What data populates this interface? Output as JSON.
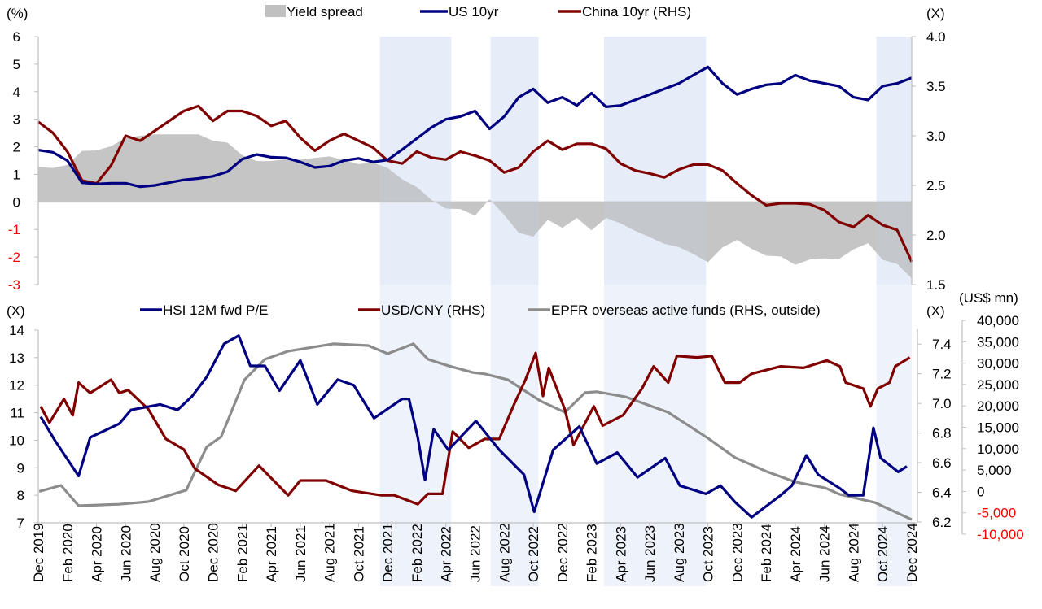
{
  "colors": {
    "us10yr": "#000080",
    "china10yr": "#800000",
    "spread": "#c0c0c0",
    "hsi": "#000080",
    "usdcny": "#800000",
    "epfr": "#8c8c8c",
    "shading": "#eef2fa",
    "negative_label": "#ff0000"
  },
  "x_axis": {
    "range": [
      "2019-12",
      "2024-12"
    ],
    "tick_labels": [
      "Dec 2019",
      "Feb 2020",
      "Apr 2020",
      "Jun 2020",
      "Aug 2020",
      "Oct 2020",
      "Dec 2020",
      "Feb 2021",
      "Apr 2021",
      "Jun 2021",
      "Aug 2021",
      "Oct 2021",
      "Dec 2021",
      "Feb 2022",
      "Apr 2022",
      "Jun 2022",
      "Aug 2022",
      "Oct 2022",
      "Dec 2022",
      "Feb 2023",
      "Apr 2023",
      "Jun 2023",
      "Aug 2023",
      "Oct 2023",
      "Dec 2023",
      "Feb 2024",
      "Apr 2024",
      "Jun 2024",
      "Aug 2024",
      "Oct 2024",
      "Dec 2024"
    ]
  },
  "shaded_periods": [
    [
      "2021-11-15",
      "2022-04-12"
    ],
    [
      "2022-07-03",
      "2022-10-12"
    ],
    [
      "2023-02-27",
      "2023-09-27"
    ],
    [
      "2024-09-18",
      "2024-12-01"
    ]
  ],
  "chart_data": [
    {
      "type": "line",
      "panel": "top",
      "legend": [
        "Yield spread",
        "US 10yr",
        "China 10yr (RHS)"
      ],
      "legend_placement": "top",
      "grid": false,
      "left_axis": {
        "unit_label": "(%)",
        "range": [
          -3,
          6
        ],
        "ticks": [
          "6",
          "5",
          "4",
          "3",
          "2",
          "1",
          "0",
          "-1",
          "-2",
          "-3"
        ]
      },
      "right_axis": {
        "unit_label": "(X)",
        "range": [
          1.5,
          4.0
        ],
        "ticks": [
          "4.0",
          "3.5",
          "3.0",
          "2.5",
          "2.0",
          "1.5"
        ]
      },
      "x": [
        "2019-12",
        "2020-01",
        "2020-02",
        "2020-03",
        "2020-04",
        "2020-05",
        "2020-06",
        "2020-07",
        "2020-08",
        "2020-09",
        "2020-10",
        "2020-11",
        "2020-12",
        "2021-01",
        "2021-02",
        "2021-03",
        "2021-04",
        "2021-05",
        "2021-06",
        "2021-07",
        "2021-08",
        "2021-09",
        "2021-10",
        "2021-11",
        "2021-12",
        "2022-01",
        "2022-02",
        "2022-03",
        "2022-04",
        "2022-05",
        "2022-06",
        "2022-07",
        "2022-08",
        "2022-09",
        "2022-10",
        "2022-11",
        "2022-12",
        "2023-01",
        "2023-02",
        "2023-03",
        "2023-04",
        "2023-05",
        "2023-06",
        "2023-07",
        "2023-08",
        "2023-09",
        "2023-10",
        "2023-11",
        "2023-12",
        "2024-01",
        "2024-02",
        "2024-03",
        "2024-04",
        "2024-05",
        "2024-06",
        "2024-07",
        "2024-08",
        "2024-09",
        "2024-10",
        "2024-11",
        "2024-12"
      ],
      "series": [
        {
          "name": "Yield spread",
          "type": "area",
          "axis": "left",
          "values": [
            1.26,
            1.23,
            1.34,
            1.85,
            1.87,
            2.02,
            2.32,
            2.4,
            2.45,
            2.45,
            2.45,
            2.45,
            2.22,
            2.15,
            1.7,
            1.48,
            1.48,
            1.55,
            1.53,
            1.6,
            1.65,
            1.52,
            1.37,
            1.43,
            1.23,
            0.82,
            0.54,
            0.08,
            -0.24,
            -0.26,
            -0.5,
            0.1,
            -0.47,
            -1.12,
            -1.26,
            -0.65,
            -0.94,
            -0.58,
            -1.03,
            -0.58,
            -0.78,
            -1.05,
            -1.28,
            -1.52,
            -1.64,
            -1.89,
            -2.19,
            -1.65,
            -1.38,
            -1.7,
            -1.95,
            -1.98,
            -2.28,
            -2.09,
            -2.05,
            -2.07,
            -1.72,
            -1.5,
            -2.1,
            -2.25,
            -2.77
          ]
        },
        {
          "name": "US 10yr",
          "type": "line",
          "axis": "left",
          "values": [
            1.88,
            1.8,
            1.5,
            0.7,
            0.65,
            0.68,
            0.68,
            0.55,
            0.6,
            0.7,
            0.8,
            0.85,
            0.93,
            1.1,
            1.55,
            1.72,
            1.62,
            1.6,
            1.45,
            1.25,
            1.3,
            1.5,
            1.58,
            1.45,
            1.52,
            1.9,
            2.3,
            2.7,
            3.0,
            3.1,
            3.3,
            2.65,
            3.1,
            3.8,
            4.1,
            3.6,
            3.8,
            3.5,
            3.95,
            3.45,
            3.5,
            3.7,
            3.9,
            4.1,
            4.3,
            4.6,
            4.9,
            4.3,
            3.9,
            4.1,
            4.25,
            4.3,
            4.6,
            4.4,
            4.3,
            4.2,
            3.8,
            3.7,
            4.2,
            4.3,
            4.5
          ]
        },
        {
          "name": "China 10yr (RHS)",
          "type": "line",
          "axis": "right",
          "values": [
            3.14,
            3.03,
            2.84,
            2.55,
            2.52,
            2.7,
            3.0,
            2.95,
            3.05,
            3.15,
            3.25,
            3.3,
            3.15,
            3.25,
            3.25,
            3.2,
            3.1,
            3.15,
            2.98,
            2.85,
            2.95,
            3.02,
            2.95,
            2.88,
            2.75,
            2.72,
            2.84,
            2.78,
            2.76,
            2.84,
            2.8,
            2.75,
            2.63,
            2.68,
            2.84,
            2.95,
            2.86,
            2.92,
            2.92,
            2.87,
            2.72,
            2.65,
            2.62,
            2.58,
            2.66,
            2.71,
            2.71,
            2.65,
            2.52,
            2.4,
            2.3,
            2.32,
            2.32,
            2.31,
            2.25,
            2.13,
            2.08,
            2.2,
            2.1,
            2.05,
            1.73
          ]
        }
      ]
    },
    {
      "type": "line",
      "panel": "bottom",
      "legend": [
        "HSI 12M fwd P/E",
        "USD/CNY (RHS)",
        "EPFR overseas active funds (RHS, outside)"
      ],
      "legend_placement": "top",
      "grid": false,
      "left_axis": {
        "unit_label": "(X)",
        "range": [
          7,
          14
        ],
        "ticks": [
          "14",
          "13",
          "12",
          "11",
          "10",
          "9",
          "8",
          "7"
        ]
      },
      "right_axis": {
        "unit_label": "(X)",
        "range": [
          6.2,
          7.5
        ],
        "ticks": [
          "7.4",
          "7.2",
          "7.0",
          "6.8",
          "6.6",
          "6.4",
          "6.2"
        ]
      },
      "outside_axis": {
        "unit_label": "(US$ mn)",
        "range": [
          -10000,
          40000
        ],
        "ticks": [
          "40,000",
          "35,000",
          "30,000",
          "25,000",
          "20,000",
          "15,000",
          "10,000",
          "5,000",
          "0",
          "-5,000",
          "-10,000"
        ]
      },
      "series": [
        {
          "name": "HSI 12M fwd P/E",
          "axis": "left",
          "points": [
            [
              "2019-12-06",
              10.85
            ],
            [
              "2020-01-06",
              9.97
            ],
            [
              "2020-02-24",
              8.7
            ],
            [
              "2020-03-18",
              10.1
            ],
            [
              "2020-05-18",
              10.6
            ],
            [
              "2020-06-12",
              11.1
            ],
            [
              "2020-08-12",
              11.3
            ],
            [
              "2020-09-18",
              11.1
            ],
            [
              "2020-10-18",
              11.6
            ],
            [
              "2020-11-18",
              12.3
            ],
            [
              "2020-12-24",
              13.5
            ],
            [
              "2021-01-24",
              13.8
            ],
            [
              "2021-02-18",
              12.7
            ],
            [
              "2021-03-18",
              12.7
            ],
            [
              "2021-04-18",
              11.8
            ],
            [
              "2021-06-01",
              12.9
            ],
            [
              "2021-07-06",
              11.3
            ],
            [
              "2021-08-18",
              12.2
            ],
            [
              "2021-09-21",
              12.0
            ],
            [
              "2021-11-03",
              10.8
            ],
            [
              "2022-01-01",
              11.5
            ],
            [
              "2022-01-15",
              11.5
            ],
            [
              "2022-02-03",
              10.1
            ],
            [
              "2022-02-18",
              8.55
            ],
            [
              "2022-03-06",
              10.4
            ],
            [
              "2022-04-06",
              9.65
            ],
            [
              "2022-06-03",
              10.7
            ],
            [
              "2022-07-21",
              9.65
            ],
            [
              "2022-09-12",
              8.75
            ],
            [
              "2022-10-03",
              7.4
            ],
            [
              "2022-11-12",
              9.65
            ],
            [
              "2023-01-06",
              10.5
            ],
            [
              "2023-02-12",
              9.15
            ],
            [
              "2023-03-24",
              9.55
            ],
            [
              "2023-05-06",
              8.65
            ],
            [
              "2023-07-03",
              9.35
            ],
            [
              "2023-08-03",
              8.35
            ],
            [
              "2023-09-27",
              8.05
            ],
            [
              "2023-10-27",
              8.35
            ],
            [
              "2023-11-27",
              7.75
            ],
            [
              "2024-01-01",
              7.2
            ],
            [
              "2024-03-01",
              8.0
            ],
            [
              "2024-03-24",
              8.35
            ],
            [
              "2024-04-24",
              9.45
            ],
            [
              "2024-05-18",
              8.75
            ],
            [
              "2024-07-03",
              8.25
            ],
            [
              "2024-07-21",
              8.0
            ],
            [
              "2024-08-21",
              8.0
            ],
            [
              "2024-09-12",
              10.45
            ],
            [
              "2024-09-27",
              9.35
            ],
            [
              "2024-11-03",
              8.85
            ],
            [
              "2024-11-21",
              9.05
            ]
          ]
        },
        {
          "name": "USD/CNY (RHS)",
          "axis": "right",
          "points": [
            [
              "2019-12-06",
              6.98
            ],
            [
              "2019-12-24",
              6.87
            ],
            [
              "2020-01-24",
              7.03
            ],
            [
              "2020-02-12",
              6.92
            ],
            [
              "2020-02-24",
              7.14
            ],
            [
              "2020-03-18",
              7.07
            ],
            [
              "2020-05-01",
              7.16
            ],
            [
              "2020-05-18",
              7.07
            ],
            [
              "2020-06-06",
              7.09
            ],
            [
              "2020-07-18",
              6.96
            ],
            [
              "2020-08-24",
              6.76
            ],
            [
              "2020-10-01",
              6.69
            ],
            [
              "2020-10-24",
              6.56
            ],
            [
              "2020-12-12",
              6.45
            ],
            [
              "2021-01-18",
              6.41
            ],
            [
              "2021-03-06",
              6.58
            ],
            [
              "2021-05-06",
              6.38
            ],
            [
              "2021-06-01",
              6.48
            ],
            [
              "2021-07-24",
              6.48
            ],
            [
              "2021-09-18",
              6.41
            ],
            [
              "2021-11-18",
              6.38
            ],
            [
              "2021-12-15",
              6.38
            ],
            [
              "2022-02-03",
              6.32
            ],
            [
              "2022-02-24",
              6.39
            ],
            [
              "2022-03-24",
              6.39
            ],
            [
              "2022-04-15",
              6.81
            ],
            [
              "2022-05-18",
              6.7
            ],
            [
              "2022-06-21",
              6.76
            ],
            [
              "2022-07-21",
              6.76
            ],
            [
              "2022-08-21",
              6.99
            ],
            [
              "2022-09-15",
              7.16
            ],
            [
              "2022-10-06",
              7.34
            ],
            [
              "2022-10-21",
              7.05
            ],
            [
              "2022-11-03",
              7.24
            ],
            [
              "2022-12-06",
              6.96
            ],
            [
              "2022-12-24",
              6.72
            ],
            [
              "2023-02-06",
              6.98
            ],
            [
              "2023-02-24",
              6.85
            ],
            [
              "2023-04-06",
              6.92
            ],
            [
              "2023-05-15",
              7.1
            ],
            [
              "2023-06-09",
              7.25
            ],
            [
              "2023-07-09",
              7.14
            ],
            [
              "2023-07-27",
              7.32
            ],
            [
              "2023-09-09",
              7.31
            ],
            [
              "2023-10-09",
              7.32
            ],
            [
              "2023-11-06",
              7.14
            ],
            [
              "2023-12-06",
              7.14
            ],
            [
              "2024-01-01",
              7.2
            ],
            [
              "2024-03-01",
              7.25
            ],
            [
              "2024-04-18",
              7.24
            ],
            [
              "2024-06-06",
              7.29
            ],
            [
              "2024-07-03",
              7.25
            ],
            [
              "2024-07-15",
              7.14
            ],
            [
              "2024-08-21",
              7.1
            ],
            [
              "2024-09-06",
              6.98
            ],
            [
              "2024-09-21",
              7.1
            ],
            [
              "2024-10-15",
              7.14
            ],
            [
              "2024-10-27",
              7.25
            ],
            [
              "2024-11-27",
              7.31
            ]
          ]
        },
        {
          "name": "EPFR overseas active funds (RHS, outside)",
          "axis": "outside",
          "points": [
            [
              "2019-12-03",
              0
            ],
            [
              "2020-01-18",
              1400
            ],
            [
              "2020-02-24",
              -3350
            ],
            [
              "2020-05-18",
              -3000
            ],
            [
              "2020-07-18",
              -2400
            ],
            [
              "2020-10-06",
              300
            ],
            [
              "2020-11-18",
              10400
            ],
            [
              "2020-12-18",
              12800
            ],
            [
              "2021-02-06",
              26100
            ],
            [
              "2021-03-18",
              30900
            ],
            [
              "2021-05-06",
              32800
            ],
            [
              "2021-08-09",
              34500
            ],
            [
              "2021-10-21",
              34100
            ],
            [
              "2021-12-01",
              32200
            ],
            [
              "2022-01-24",
              34500
            ],
            [
              "2022-02-24",
              30900
            ],
            [
              "2022-04-06",
              29400
            ],
            [
              "2022-05-27",
              27800
            ],
            [
              "2022-06-21",
              27500
            ],
            [
              "2022-08-09",
              26100
            ],
            [
              "2022-10-15",
              21200
            ],
            [
              "2022-12-06",
              18500
            ],
            [
              "2023-01-18",
              23100
            ],
            [
              "2023-02-12",
              23300
            ],
            [
              "2023-04-12",
              22100
            ],
            [
              "2023-07-09",
              18500
            ],
            [
              "2023-10-03",
              12300
            ],
            [
              "2023-11-27",
              7900
            ],
            [
              "2024-02-01",
              4700
            ],
            [
              "2024-04-01",
              2200
            ],
            [
              "2024-06-03",
              800
            ],
            [
              "2024-07-03",
              -700
            ],
            [
              "2024-09-15",
              -2600
            ],
            [
              "2024-12-01",
              -6600
            ]
          ]
        }
      ]
    }
  ]
}
